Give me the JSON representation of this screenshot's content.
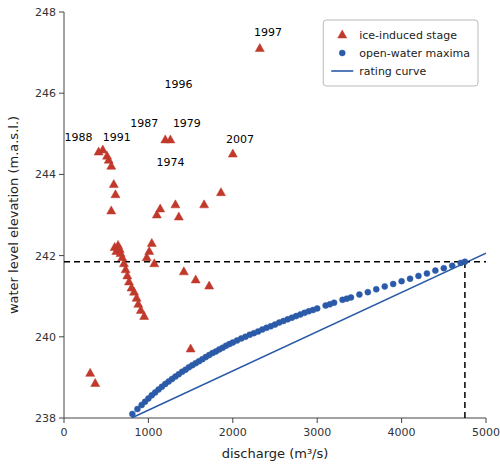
{
  "chart_data": {
    "type": "scatter",
    "xlabel": "discharge (m³/s)",
    "ylabel": "water level elevation (m.a.s.l.)",
    "xlim": [
      0,
      5000
    ],
    "ylim": [
      238,
      248
    ],
    "xticks": [
      0,
      1000,
      2000,
      3000,
      4000,
      5000
    ],
    "yticks": [
      238,
      240,
      242,
      244,
      246,
      248
    ],
    "grid": false,
    "legend": "upper right",
    "series": [
      {
        "name": "ice-induced stage",
        "type": "scatter",
        "marker": "triangle",
        "color": "#C0392B",
        "x": [
          310,
          370,
          410,
          460,
          510,
          530,
          560,
          590,
          610,
          560,
          600,
          620,
          640,
          660,
          670,
          690,
          710,
          730,
          750,
          770,
          800,
          830,
          860,
          880,
          910,
          950,
          980,
          1010,
          1040,
          1070,
          1100,
          1140,
          1200,
          1260,
          1320,
          1360,
          1420,
          1500,
          1560,
          1660,
          1720,
          1860,
          2000,
          2320
        ],
        "values": [
          239.1,
          238.85,
          244.55,
          244.6,
          244.45,
          244.35,
          244.2,
          243.75,
          243.5,
          243.1,
          242.2,
          242.1,
          242.25,
          242.15,
          242.05,
          241.95,
          241.8,
          241.65,
          241.5,
          241.35,
          241.2,
          241.1,
          240.95,
          240.8,
          240.65,
          240.5,
          241.95,
          242.1,
          242.3,
          241.8,
          243.0,
          243.15,
          244.85,
          244.85,
          243.25,
          242.95,
          241.6,
          239.7,
          241.4,
          243.25,
          241.25,
          243.55,
          244.5,
          247.1
        ]
      },
      {
        "name": "open-water maxima",
        "type": "scatter",
        "marker": "circle",
        "color": "#2B5BA8",
        "x": [
          810,
          870,
          920,
          960,
          1000,
          1040,
          1080,
          1120,
          1160,
          1200,
          1240,
          1280,
          1320,
          1360,
          1400,
          1440,
          1480,
          1520,
          1560,
          1600,
          1640,
          1680,
          1720,
          1760,
          1800,
          1840,
          1880,
          1920,
          1960,
          2000,
          2050,
          2100,
          2150,
          2200,
          2250,
          2300,
          2350,
          2400,
          2450,
          2500,
          2550,
          2600,
          2650,
          2700,
          2750,
          2800,
          2850,
          2900,
          2950,
          3000,
          3100,
          3150,
          3200,
          3300,
          3350,
          3400,
          3500,
          3600,
          3700,
          3800,
          3900,
          4000,
          4100,
          4200,
          4300,
          4400,
          4500,
          4600,
          4700,
          4750
        ],
        "values": [
          238.1,
          238.22,
          238.32,
          238.4,
          238.48,
          238.56,
          238.63,
          238.7,
          238.77,
          238.84,
          238.9,
          238.96,
          239.02,
          239.08,
          239.14,
          239.19,
          239.25,
          239.3,
          239.35,
          239.4,
          239.45,
          239.5,
          239.55,
          239.6,
          239.64,
          239.69,
          239.73,
          239.78,
          239.82,
          239.86,
          239.91,
          239.96,
          240.0,
          240.05,
          240.09,
          240.13,
          240.18,
          240.22,
          240.26,
          240.3,
          240.35,
          240.39,
          240.43,
          240.47,
          240.51,
          240.55,
          240.59,
          240.63,
          240.66,
          240.7,
          240.77,
          240.8,
          240.84,
          240.91,
          240.94,
          240.97,
          241.04,
          241.1,
          241.17,
          241.24,
          241.3,
          241.37,
          241.43,
          241.5,
          241.56,
          241.63,
          241.69,
          241.75,
          241.82,
          241.85
        ]
      },
      {
        "name": "rating curve",
        "type": "line",
        "line_style": "solid",
        "color": "#2B5BA8",
        "x": [
          800,
          5000
        ],
        "values": [
          238.0,
          242.06
        ]
      }
    ],
    "hline": {
      "y": 241.85,
      "color": "black",
      "line_style": "dashed"
    },
    "vline": {
      "x": 4750,
      "y_from": 238,
      "y_to": 241.85,
      "color": "black",
      "line_style": "dashed"
    },
    "annotations": [
      {
        "text": "1988",
        "x": 350,
        "y": 244.77
      },
      {
        "text": "1991",
        "x": 460,
        "y": 244.77
      },
      {
        "text": "1987",
        "x": 1130,
        "y": 245.12
      },
      {
        "text": "1979",
        "x": 1290,
        "y": 245.12
      },
      {
        "text": "1996",
        "x": 1190,
        "y": 246.07
      },
      {
        "text": "1997",
        "x": 2250,
        "y": 247.35
      },
      {
        "text": "1974",
        "x": 1095,
        "y": 244.15
      },
      {
        "text": "2007",
        "x": 1920,
        "y": 244.72
      }
    ]
  }
}
